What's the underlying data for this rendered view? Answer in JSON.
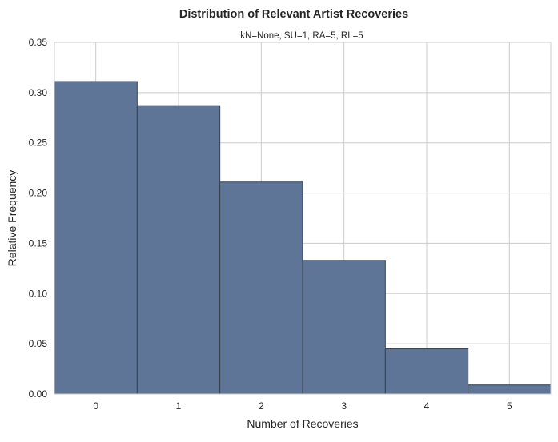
{
  "chart_data": {
    "type": "bar",
    "title": "Distribution of Relevant Artist Recoveries",
    "subtitle": "kN=None, SU=1, RA=5, RL=5",
    "xlabel": "Number of Recoveries",
    "ylabel": "Relative Frequency",
    "categories": [
      "0",
      "1",
      "2",
      "3",
      "4",
      "5"
    ],
    "values": [
      0.311,
      0.287,
      0.211,
      0.133,
      0.045,
      0.009
    ],
    "ylim": [
      0,
      0.35
    ],
    "yticks": [
      "0.00",
      "0.05",
      "0.10",
      "0.15",
      "0.20",
      "0.25",
      "0.30",
      "0.35"
    ],
    "grid": true,
    "bar_color": "#5e7598"
  }
}
